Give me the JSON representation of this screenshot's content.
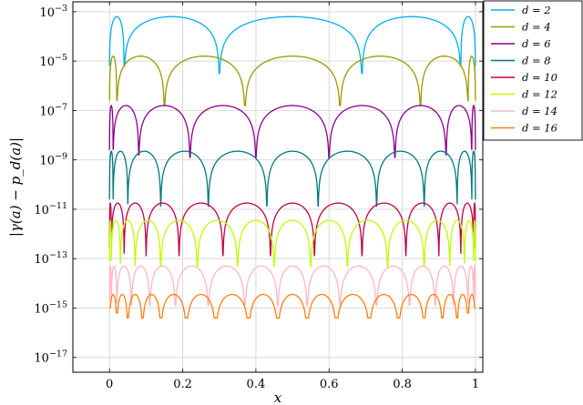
{
  "chart_data": {
    "type": "line",
    "xlabel": "x",
    "ylabel": "|γ(a) − p_d(a)|",
    "y_scale": "log",
    "xlim": [
      -0.1,
      1.02
    ],
    "ylim_exponent": [
      -17.6,
      -2.6
    ],
    "grid": true,
    "legend_position": "top-right, outside plot",
    "x_ticks": [
      0,
      0.2,
      0.4,
      0.6,
      0.8,
      1
    ],
    "x_tick_labels": [
      "0",
      "0.2",
      "0.4",
      "0.6",
      "0.8",
      "1"
    ],
    "y_ticks_exponent": [
      -3,
      -5,
      -7,
      -9,
      -11,
      -13,
      -15,
      -17
    ],
    "y_tick_labels": [
      "10",
      "10",
      "10",
      "10",
      "10",
      "10",
      "10",
      "10"
    ],
    "y_tick_superscripts": [
      "−3",
      "−5",
      "−7",
      "−9",
      "−11",
      "−13",
      "−15",
      "−17"
    ],
    "series": [
      {
        "name": "d = 2",
        "color": "#00b0ec",
        "peak_log10": -3.2,
        "dips": [
          0.04,
          0.3,
          0.69,
          0.96
        ],
        "dip_log10": [
          -5.2,
          -5.5,
          -5.5,
          -5.2
        ]
      },
      {
        "name": "d = 4",
        "color": "#9a9a00",
        "peak_log10": -4.8,
        "dips": [
          0.02,
          0.15,
          0.37,
          0.63,
          0.85,
          0.98
        ],
        "dip_log10": [
          -6.6,
          -6.8,
          -6.8,
          -6.8,
          -6.8,
          -6.6
        ]
      },
      {
        "name": "d = 6",
        "color": "#8b008b",
        "peak_log10": -6.8,
        "dips": [
          0.01,
          0.08,
          0.22,
          0.4,
          0.6,
          0.78,
          0.92,
          0.99
        ],
        "dip_log10": [
          -8.6,
          -8.8,
          -8.9,
          -8.9,
          -8.9,
          -8.9,
          -8.8,
          -8.6
        ]
      },
      {
        "name": "d = 8",
        "color": "#00797b",
        "peak_log10": -8.65,
        "dips": [
          0.01,
          0.05,
          0.14,
          0.27,
          0.43,
          0.57,
          0.73,
          0.86,
          0.95,
          0.99
        ],
        "dip_log10": [
          -10.6,
          -10.8,
          -10.9,
          -10.9,
          -10.9,
          -10.9,
          -10.9,
          -10.9,
          -10.8,
          -10.6
        ]
      },
      {
        "name": "d = 10",
        "color": "#c0004a",
        "peak_log10": -10.75,
        "dips": [
          0.005,
          0.04,
          0.1,
          0.19,
          0.31,
          0.44,
          0.56,
          0.69,
          0.81,
          0.9,
          0.96,
          0.995
        ],
        "dip_log10": [
          -12.6,
          -12.8,
          -12.9,
          -12.9,
          -12.9,
          -12.9,
          -12.9,
          -12.9,
          -12.9,
          -12.9,
          -12.8,
          -12.6
        ]
      },
      {
        "name": "d = 12",
        "color": "#bfff00",
        "peak_log10": -11.45,
        "dips": [
          0.005,
          0.03,
          0.07,
          0.14,
          0.24,
          0.35,
          0.45,
          0.55,
          0.65,
          0.76,
          0.86,
          0.93,
          0.97,
          0.995
        ],
        "dip_log10": [
          -13.1,
          -13.2,
          -13.3,
          -13.3,
          -13.3,
          -13.3,
          -13.3,
          -13.3,
          -13.3,
          -13.3,
          -13.3,
          -13.3,
          -13.2,
          -13.1
        ]
      },
      {
        "name": "d = 14",
        "color": "#ffb6c1",
        "peak_log10": -13.3,
        "dips": [
          0.005,
          0.02,
          0.06,
          0.11,
          0.18,
          0.27,
          0.37,
          0.46,
          0.54,
          0.63,
          0.73,
          0.82,
          0.89,
          0.94,
          0.98,
          0.995
        ],
        "dip_log10": [
          -14.7,
          -14.8,
          -14.9,
          -14.9,
          -14.9,
          -14.9,
          -14.9,
          -14.9,
          -14.9,
          -14.9,
          -14.9,
          -14.9,
          -14.9,
          -14.9,
          -14.8,
          -14.7
        ]
      },
      {
        "name": "d = 16",
        "color": "#ff7f0e",
        "peak_log10": -14.45,
        "dips": [
          0.0,
          0.02,
          0.05,
          0.09,
          0.14,
          0.21,
          0.29,
          0.38,
          0.46,
          0.54,
          0.62,
          0.71,
          0.79,
          0.86,
          0.91,
          0.95,
          0.98,
          1.0
        ],
        "dip_log10": [
          -15.0,
          -15.2,
          -15.4,
          -15.4,
          -15.4,
          -15.4,
          -15.4,
          -15.4,
          -15.4,
          -15.4,
          -15.4,
          -15.4,
          -15.4,
          -15.4,
          -15.4,
          -15.4,
          -15.2,
          -15.0
        ]
      }
    ]
  }
}
